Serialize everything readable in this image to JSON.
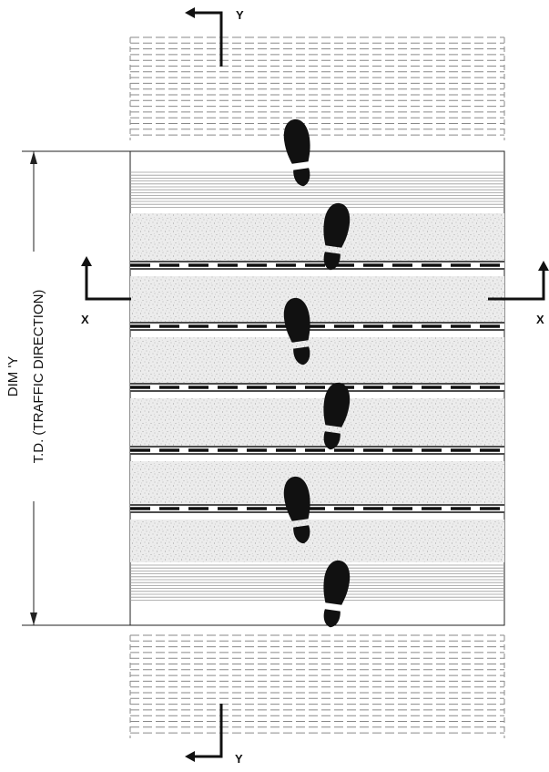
{
  "section_marks": {
    "x_left": "X",
    "x_right": "X",
    "y_top": "Y",
    "y_bottom": "Y"
  },
  "dimension": {
    "line1": "DIM 'Y",
    "line2": "T.D. (TRAFFIC DIRECTION)"
  },
  "colors": {
    "ink": "#111111",
    "tread_fill": "#e9e9e9",
    "dashed_line": "#8a8a8a",
    "fine_line": "#9a9a9a"
  },
  "icons": {
    "footprint": "shoe-print-icon",
    "section_arrow": "section-arrow-icon"
  }
}
